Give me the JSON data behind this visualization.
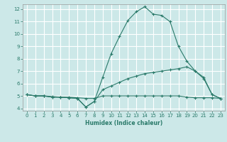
{
  "title": "",
  "xlabel": "Humidex (Indice chaleur)",
  "ylabel": "",
  "bg_color": "#cce8e8",
  "grid_color": "#ffffff",
  "line_color": "#2a7a6a",
  "xlim": [
    -0.5,
    23.5
  ],
  "ylim": [
    3.8,
    12.4
  ],
  "xticks": [
    0,
    1,
    2,
    3,
    4,
    5,
    6,
    7,
    8,
    9,
    10,
    11,
    12,
    13,
    14,
    15,
    16,
    17,
    18,
    19,
    20,
    21,
    22,
    23
  ],
  "yticks": [
    4,
    5,
    6,
    7,
    8,
    9,
    10,
    11,
    12
  ],
  "line1_x": [
    0,
    1,
    2,
    3,
    4,
    5,
    6,
    7,
    8,
    9,
    10,
    11,
    12,
    13,
    14,
    15,
    16,
    17,
    18,
    19,
    20,
    21,
    22,
    23
  ],
  "line1_y": [
    5.1,
    5.0,
    5.0,
    4.9,
    4.9,
    4.85,
    4.8,
    4.1,
    4.55,
    6.5,
    8.4,
    9.8,
    11.1,
    11.8,
    12.2,
    11.6,
    11.5,
    11.0,
    9.0,
    7.8,
    7.0,
    6.5,
    5.1,
    4.8
  ],
  "line2_x": [
    0,
    1,
    2,
    3,
    4,
    5,
    6,
    7,
    8,
    9,
    10,
    11,
    12,
    13,
    14,
    15,
    16,
    17,
    18,
    19,
    20,
    21,
    22,
    23
  ],
  "line2_y": [
    5.1,
    5.0,
    5.0,
    4.9,
    4.9,
    4.85,
    4.8,
    4.1,
    4.55,
    5.5,
    5.8,
    6.1,
    6.4,
    6.6,
    6.8,
    6.9,
    7.0,
    7.1,
    7.2,
    7.35,
    7.0,
    6.4,
    5.1,
    4.8
  ],
  "line3_x": [
    0,
    1,
    2,
    3,
    4,
    5,
    6,
    7,
    8,
    9,
    10,
    11,
    12,
    13,
    14,
    15,
    16,
    17,
    18,
    19,
    20,
    21,
    22,
    23
  ],
  "line3_y": [
    5.1,
    5.0,
    5.0,
    4.95,
    4.9,
    4.9,
    4.85,
    4.8,
    4.8,
    5.0,
    5.0,
    5.0,
    5.0,
    5.0,
    5.0,
    5.0,
    5.0,
    5.0,
    5.0,
    4.9,
    4.85,
    4.85,
    4.85,
    4.8
  ],
  "xlabel_fontsize": 5.5,
  "tick_fontsize": 5.0
}
